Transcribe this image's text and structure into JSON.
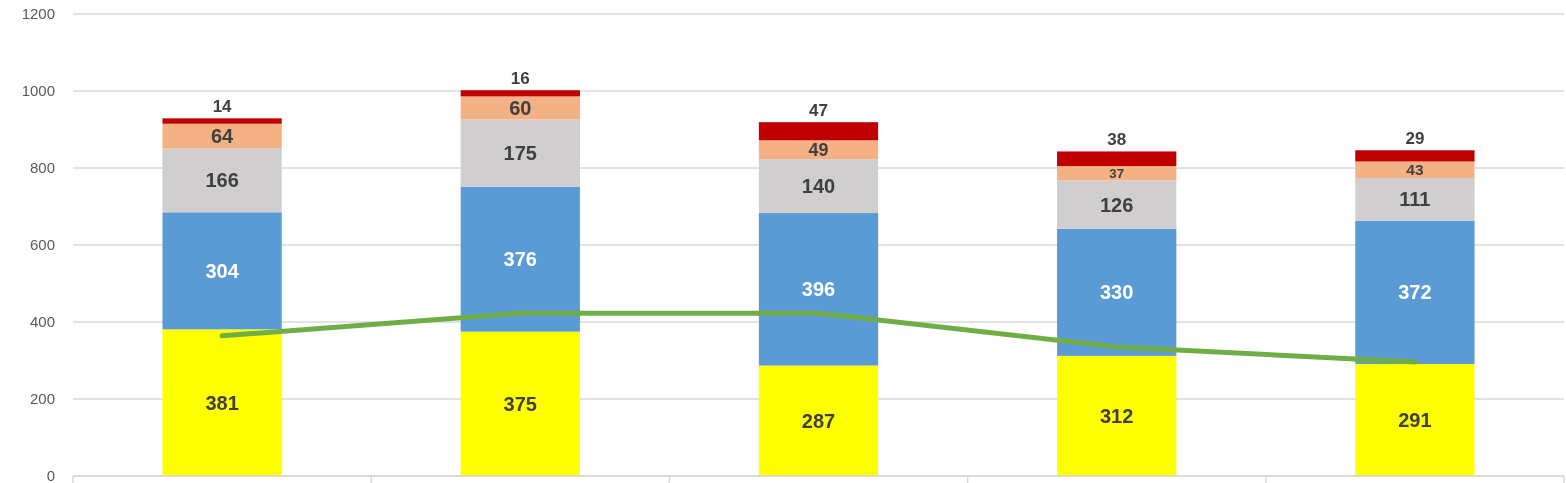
{
  "chart_data": {
    "type": "bar",
    "stacked": true,
    "categories": [
      null,
      null,
      null,
      null,
      null
    ],
    "ylim": [
      0,
      1200
    ],
    "yticks": [
      0,
      200,
      400,
      600,
      800,
      1000,
      1200
    ],
    "grid": "y",
    "series": [
      {
        "color": "#ffff00",
        "values": [
          381,
          375,
          287,
          312,
          291
        ],
        "value_labels": [
          "381",
          "375",
          "287",
          "312",
          "291"
        ]
      },
      {
        "color": "#5b9bd5",
        "values": [
          304,
          376,
          396,
          330,
          372
        ],
        "value_labels": [
          "304",
          "376",
          "396",
          "330",
          "372"
        ]
      },
      {
        "color": "#d0cece",
        "values": [
          166,
          175,
          140,
          126,
          111
        ],
        "value_labels": [
          "166",
          "175",
          "140",
          "126",
          "111"
        ]
      },
      {
        "color": "#f4b183",
        "values": [
          64,
          60,
          49,
          37,
          43
        ],
        "value_labels": [
          "64",
          "60",
          "49",
          "37",
          "43"
        ]
      },
      {
        "color": "#c00000",
        "values": [
          14,
          16,
          47,
          38,
          29
        ],
        "value_labels": [
          "14",
          "16",
          "47",
          "38",
          "29"
        ]
      },
      {
        "type": "line",
        "color": "#70ad47",
        "values": [
          364,
          423,
          423,
          335,
          296
        ]
      }
    ]
  }
}
